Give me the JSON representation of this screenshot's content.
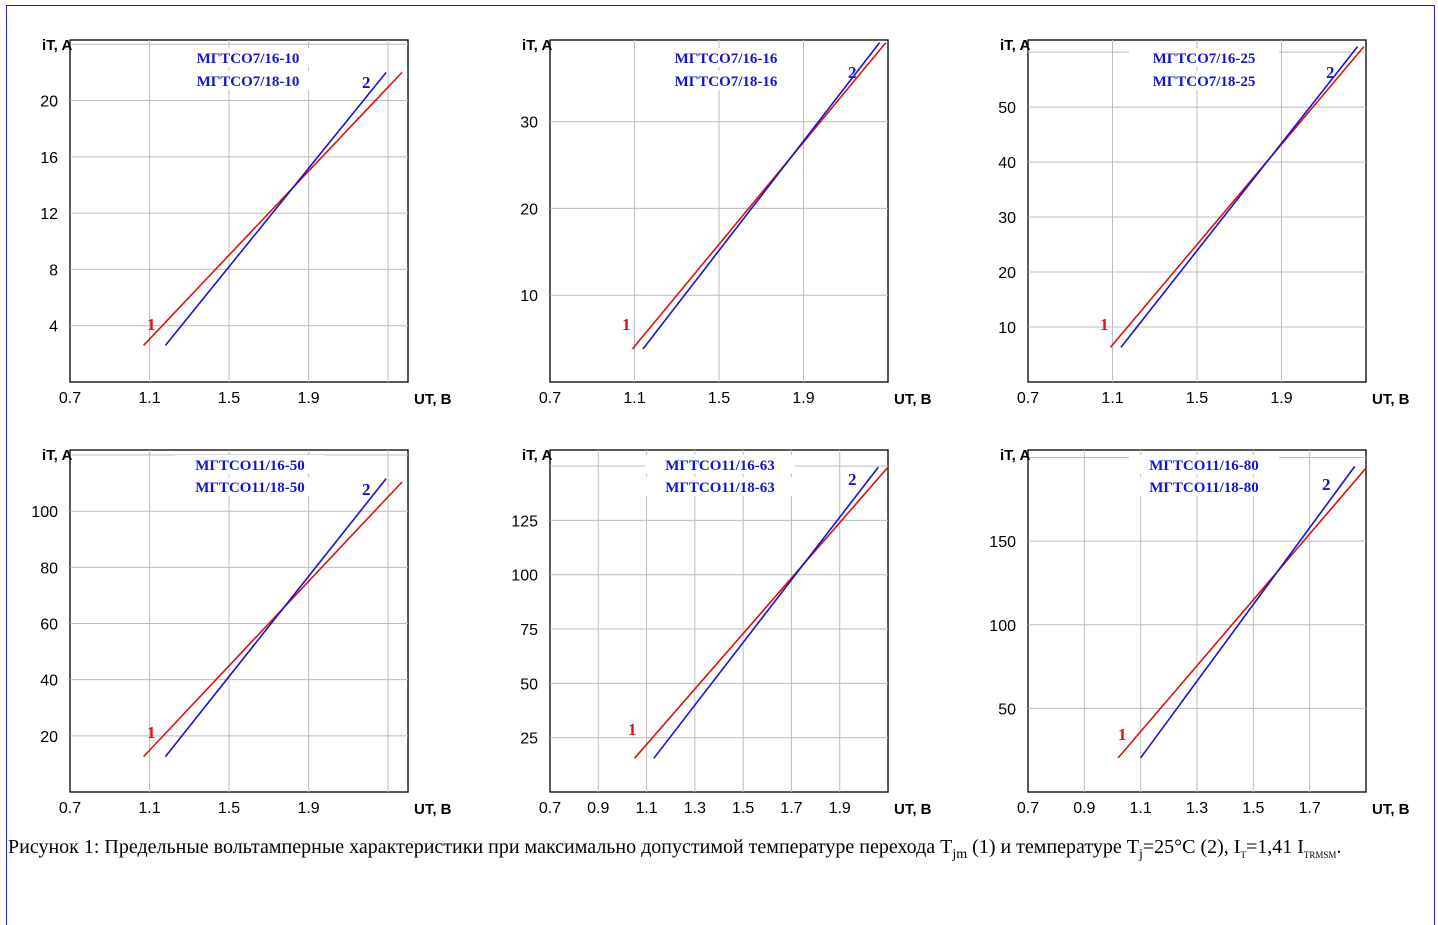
{
  "caption": {
    "part1": "Рисунок 1: Предельные вольтамперные характеристики при максимально допустимой температуре перехода T",
    "sub1": "jm",
    "part2": " (1) и температуре T",
    "sub2": "j",
    "part3": "=25°C (2), I",
    "sub3": "T",
    "part4": "=1,41 I",
    "sub4": "TRMSM",
    "part5": "."
  },
  "colors": {
    "curve1": "#e01010",
    "curve2": "#1414d0",
    "grid": "#bdbdbd",
    "frame": "#1f1fd0"
  },
  "chart_data": [
    {
      "type": "line",
      "title": [
        "МГТСО7/16-10",
        "МГТСО7/18-10"
      ],
      "ylabel": "iT, A",
      "xlabel": "UT, B",
      "xlim": [
        0.7,
        2.4
      ],
      "ylim": [
        0,
        24.3
      ],
      "xticks": [
        "0.7",
        "1.1",
        "1.5",
        "1.9"
      ],
      "yticks": [
        "4",
        "8",
        "12",
        "16",
        "20"
      ],
      "series": [
        {
          "name": "1",
          "x": [
            1.07,
            2.37
          ],
          "y": [
            2.6,
            22.0
          ]
        },
        {
          "name": "2",
          "x": [
            1.18,
            2.29
          ],
          "y": [
            2.6,
            22.0
          ]
        }
      ]
    },
    {
      "type": "line",
      "title": [
        "МГТСО7/16-16",
        "МГТСО7/18-16"
      ],
      "ylabel": "iT, A",
      "xlabel": "UT, B",
      "xlim": [
        0.7,
        2.3
      ],
      "ylim": [
        0,
        39.4
      ],
      "xticks": [
        "0.7",
        "1.1",
        "1.5",
        "1.9"
      ],
      "yticks": [
        "10",
        "20",
        "30"
      ],
      "series": [
        {
          "name": "1",
          "x": [
            1.09,
            2.29
          ],
          "y": [
            3.8,
            39.1
          ]
        },
        {
          "name": "2",
          "x": [
            1.14,
            2.26
          ],
          "y": [
            3.8,
            39.1
          ]
        }
      ]
    },
    {
      "type": "line",
      "title": [
        "МГТСО7/16-25",
        "МГТСО7/18-25"
      ],
      "ylabel": "iT, A",
      "xlabel": "UT, B",
      "xlim": [
        0.7,
        2.3
      ],
      "ylim": [
        0,
        62.2
      ],
      "xticks": [
        "0.7",
        "1.1",
        "1.5",
        "1.9"
      ],
      "yticks": [
        "10",
        "20",
        "30",
        "40",
        "50"
      ],
      "series": [
        {
          "name": "1",
          "x": [
            1.09,
            2.29
          ],
          "y": [
            6.3,
            61.0
          ]
        },
        {
          "name": "2",
          "x": [
            1.14,
            2.26
          ],
          "y": [
            6.3,
            61.0
          ]
        }
      ]
    },
    {
      "type": "line",
      "title": [
        "МГТСО11/16-50",
        "МГТСО11/18-50"
      ],
      "ylabel": "iT, A",
      "xlabel": "UT, B",
      "xlim": [
        0.7,
        2.4
      ],
      "ylim": [
        0,
        121.8
      ],
      "xticks": [
        "0.7",
        "1.1",
        "1.5",
        "1.9"
      ],
      "yticks": [
        "20",
        "40",
        "60",
        "80",
        "100"
      ],
      "series": [
        {
          "name": "1",
          "x": [
            1.07,
            2.37
          ],
          "y": [
            12.6,
            110.4
          ]
        },
        {
          "name": "2",
          "x": [
            1.18,
            2.29
          ],
          "y": [
            12.6,
            111.6
          ]
        }
      ]
    },
    {
      "type": "line",
      "title": [
        "МГТСО11/16-63",
        "МГТСО11/18-63"
      ],
      "ylabel": "iT, A",
      "xlabel": "UT, B",
      "xlim": [
        0.7,
        2.1
      ],
      "ylim": [
        0,
        157.4
      ],
      "xticks": [
        "0.7",
        "0.9",
        "1.1",
        "1.3",
        "1.5",
        "1.7",
        "1.9"
      ],
      "yticks": [
        "25",
        "50",
        "75",
        "100",
        "125"
      ],
      "series": [
        {
          "name": "1",
          "x": [
            1.05,
            2.1
          ],
          "y": [
            15.5,
            149.5
          ]
        },
        {
          "name": "2",
          "x": [
            1.13,
            2.06
          ],
          "y": [
            15.5,
            149.5
          ]
        }
      ]
    },
    {
      "type": "line",
      "title": [
        "МГТСО11/16-80",
        "МГТСО11/18-80"
      ],
      "ylabel": "iT, A",
      "xlabel": "UT, B",
      "xlim": [
        0.7,
        1.9
      ],
      "ylim": [
        0,
        204.5
      ],
      "xticks": [
        "0.7",
        "0.9",
        "1.1",
        "1.3",
        "1.5",
        "1.7"
      ],
      "yticks": [
        "50",
        "100",
        "150"
      ],
      "series": [
        {
          "name": "1",
          "x": [
            1.02,
            1.9
          ],
          "y": [
            20.4,
            193.7
          ]
        },
        {
          "name": "2",
          "x": [
            1.1,
            1.86
          ],
          "y": [
            20.4,
            194.7
          ]
        }
      ]
    }
  ]
}
